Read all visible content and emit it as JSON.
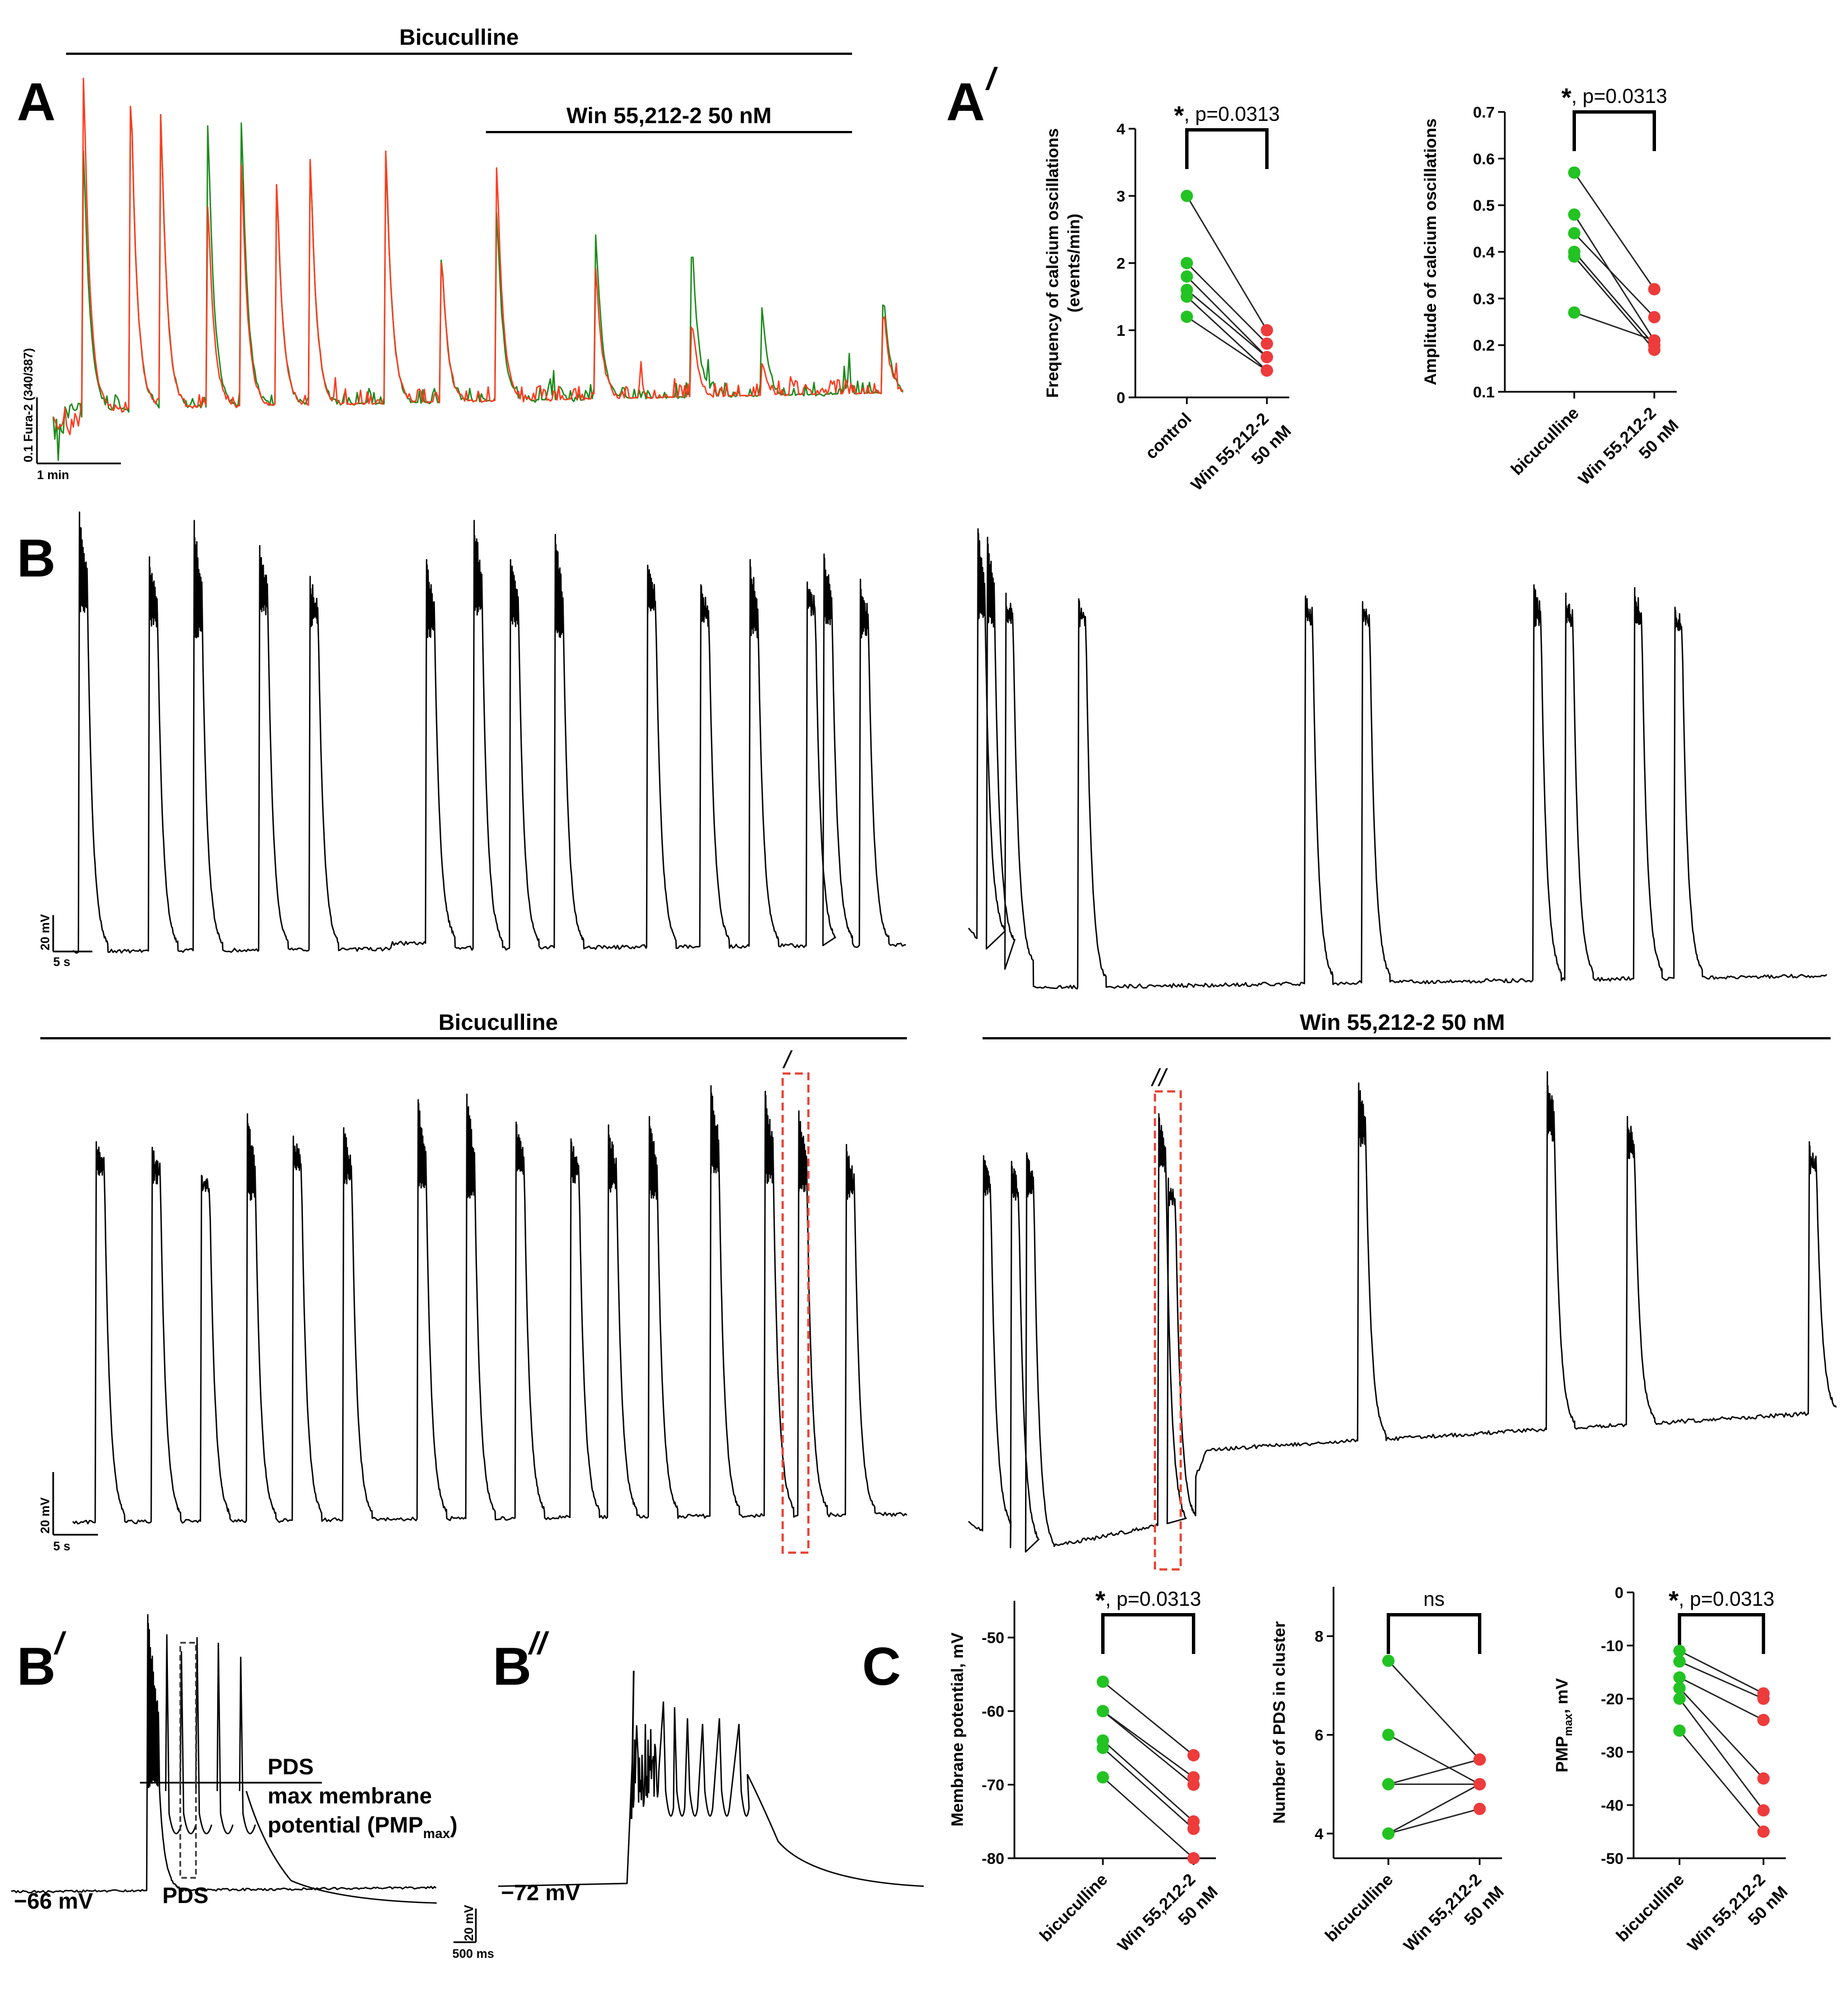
{
  "figure": {
    "condition_bars": {
      "bicuculline": "Bicuculline",
      "win": "Win 55,212-2 50 nM"
    },
    "panels": {
      "A": "A",
      "A_prime_letter": "A",
      "A_prime_mark": "/",
      "B": "B",
      "B_prime_letter": "B",
      "B_prime_mark": "/",
      "B_dprime_letter": "B",
      "B_dprime_mark": "//",
      "C": "C"
    },
    "scalebars": {
      "A_vertical": "0.1 Fura-2 (340/387)",
      "A_horizontal": "1 min",
      "B_vertical": "20 mV",
      "B_horizontal": "5 s",
      "Bp_vertical": "20 mV",
      "Bp_horizontal": "500 ms"
    },
    "traces": {
      "colors": {
        "green": "#1a8a1a",
        "red": "#ff3a1e",
        "black": "#000000",
        "box": "#e8473a",
        "dashed": "#333333"
      },
      "box_labels": {
        "first": "/",
        "second": "//"
      }
    },
    "annotations": {
      "bp_resting": "−66 mV",
      "bdp_resting": "−72 mV",
      "pds_upper": "PDS",
      "pmp_line1": "max membrane",
      "pmp_line2": "potential (PMP",
      "pmp_sub": "max",
      "pmp_close": ")",
      "pds_lower": "PDS"
    },
    "marker_colors": {
      "before": "#22c322",
      "after": "#ee3b3b"
    }
  },
  "chart_data": [
    {
      "type": "scatter",
      "panel": "A'",
      "title": "",
      "ylabel_line1": "Frequency of calcium oscillations",
      "ylabel_line2": "(events/min)",
      "categories": [
        "control",
        "Win 55,212-2",
        "50 nM"
      ],
      "ylim": [
        0,
        4
      ],
      "yticks": [
        "0",
        "1",
        "2",
        "3",
        "4"
      ],
      "before": [
        3.0,
        2.0,
        1.8,
        1.6,
        1.5,
        1.2
      ],
      "after": [
        1.0,
        0.8,
        0.6,
        0.6,
        0.4,
        0.4
      ],
      "stat_star": "*",
      "stat_text": ", p=0.0313"
    },
    {
      "type": "scatter",
      "panel": "A'",
      "title": "",
      "ylabel_line1": "Amplitude of calcium oscillations",
      "ylabel_line2": "",
      "categories": [
        "bicuculline",
        "Win 55,212-2",
        "50 nM"
      ],
      "ylim": [
        0.1,
        0.7
      ],
      "yticks": [
        "0.1",
        "0.2",
        "0.3",
        "0.4",
        "0.5",
        "0.6",
        "0.7"
      ],
      "before": [
        0.57,
        0.48,
        0.44,
        0.4,
        0.39,
        0.27
      ],
      "after": [
        0.32,
        0.21,
        0.26,
        0.2,
        0.19,
        0.21
      ],
      "stat_star": "*",
      "stat_text": ", p=0.0313"
    },
    {
      "type": "scatter",
      "panel": "C",
      "title": "",
      "ylabel_line1": "Membrane potential, mV",
      "ylabel_line2": "",
      "categories": [
        "bicuculline",
        "Win 55,212-2",
        "50 nM"
      ],
      "ylim": [
        -80,
        -45
      ],
      "yticks": [
        "-50",
        "-60",
        "-70",
        "-80"
      ],
      "before": [
        -56,
        -60,
        -60,
        -64,
        -65,
        -69
      ],
      "after": [
        -66,
        -69,
        -70,
        -75,
        -76,
        -80
      ],
      "stat_star": "*",
      "stat_text": ", p=0.0313"
    },
    {
      "type": "scatter",
      "panel": "C",
      "title": "",
      "ylabel_line1": "Number of PDS in cluster",
      "ylabel_line2": "",
      "categories": [
        "bicuculline",
        "Win 55,212-2",
        "50 nM"
      ],
      "ylim": [
        3.5,
        9
      ],
      "yticks": [
        "4",
        "6",
        "8"
      ],
      "before": [
        7.5,
        6.0,
        5.0,
        5.0,
        4.0,
        4.0
      ],
      "after": [
        5.5,
        5.0,
        5.0,
        5.5,
        4.5,
        5.0
      ],
      "stat_star": "",
      "stat_text": "ns"
    },
    {
      "type": "scatter",
      "panel": "C",
      "title": "",
      "ylabel_line1": "PMP",
      "ylabel_sub": "max",
      "ylabel_tail": ", mV",
      "categories": [
        "bicuculline",
        "Win 55,212-2",
        "50 nM"
      ],
      "ylim": [
        -50,
        0
      ],
      "yticks": [
        "0",
        "-10",
        "-20",
        "-30",
        "-40",
        "-50"
      ],
      "before": [
        -11,
        -13,
        -16,
        -18,
        -20,
        -26
      ],
      "after": [
        -19,
        -20,
        -24,
        -35,
        -41,
        -45
      ],
      "stat_star": "*",
      "stat_text": ", p=0.0313"
    }
  ]
}
